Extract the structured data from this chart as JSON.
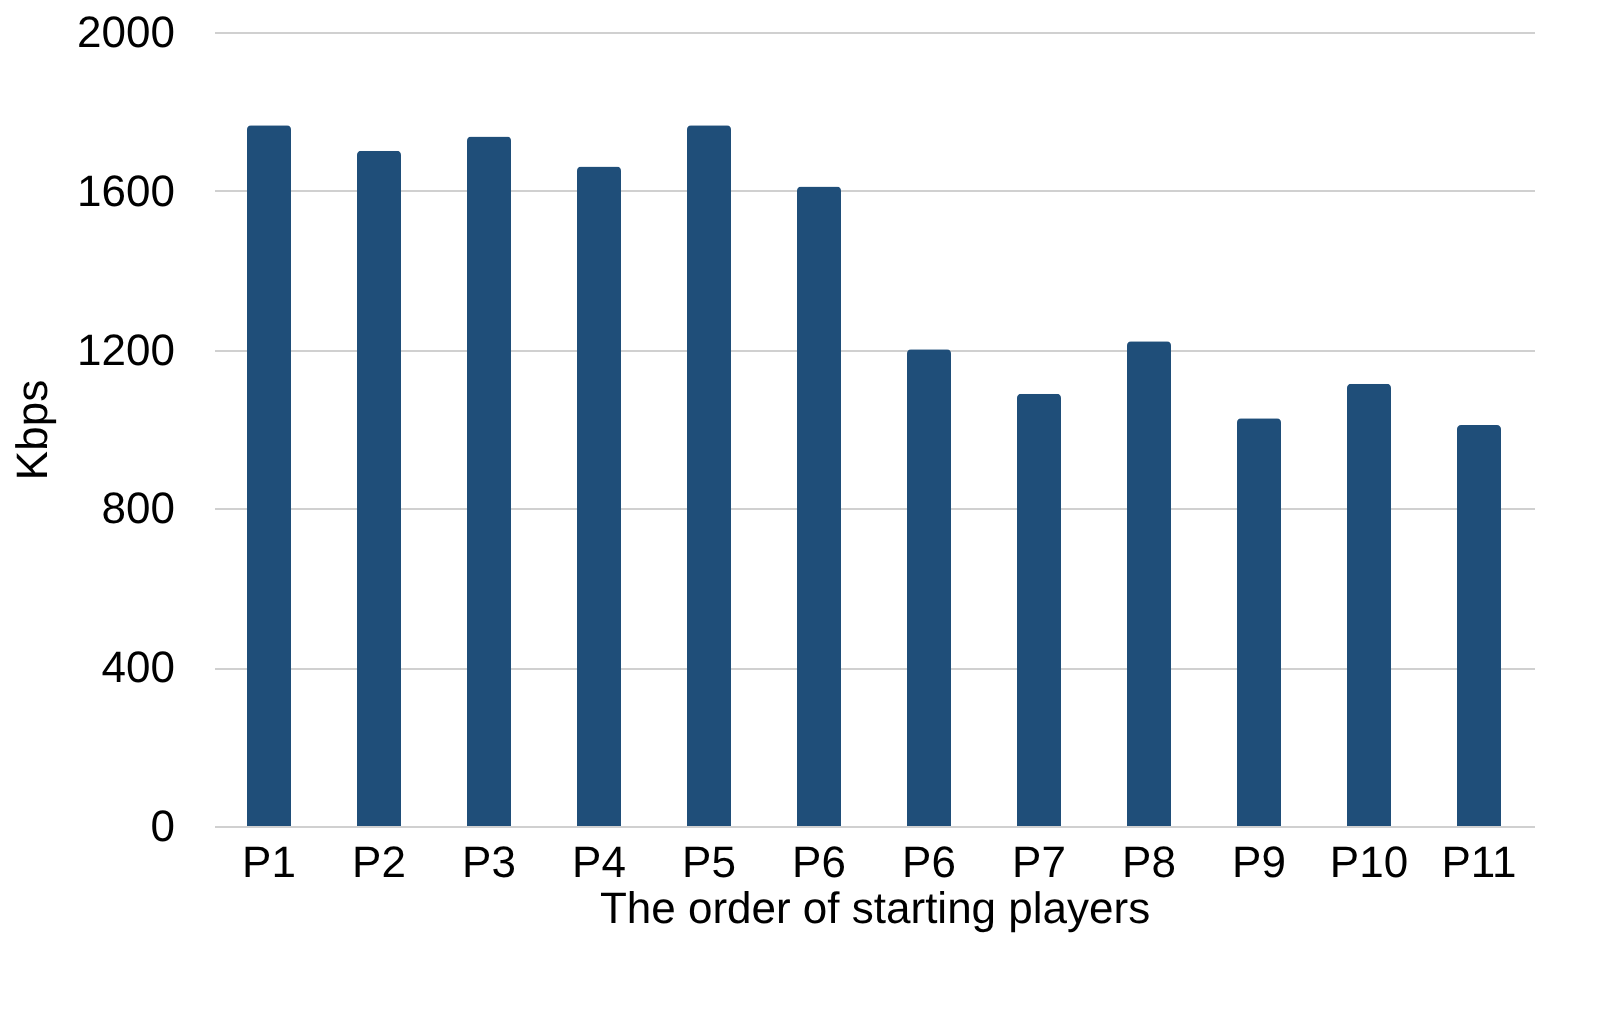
{
  "chart_data": {
    "type": "bar",
    "xlabel": "The order of starting players",
    "ylabel": "Kbps",
    "categories": [
      "P1",
      "P2",
      "P3",
      "P4",
      "P5",
      "P6",
      "P6",
      "P7",
      "P8",
      "P9",
      "P10",
      "P11"
    ],
    "values": [
      1765,
      1701,
      1737,
      1661,
      1765,
      1611,
      1201,
      1089,
      1221,
      1027,
      1114,
      1010
    ],
    "color": "#1f4e79",
    "ylim": [
      0,
      2000
    ],
    "yticks": [
      0,
      400,
      800,
      1200,
      1600,
      2000
    ],
    "grid": "y"
  }
}
